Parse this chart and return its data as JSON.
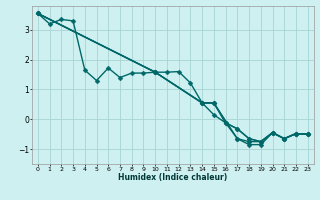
{
  "title": "",
  "xlabel": "Humidex (Indice chaleur)",
  "ylabel": "",
  "bg_color": "#cff0f0",
  "grid_color": "#a8d4d4",
  "line_color": "#006868",
  "xlim": [
    -0.5,
    23.5
  ],
  "ylim": [
    -1.5,
    3.8
  ],
  "yticks": [
    -1,
    0,
    1,
    2,
    3
  ],
  "xticks": [
    0,
    1,
    2,
    3,
    4,
    5,
    6,
    7,
    8,
    9,
    10,
    11,
    12,
    13,
    14,
    15,
    16,
    17,
    18,
    19,
    20,
    21,
    22,
    23
  ],
  "series": [
    {
      "x": [
        0,
        1,
        2,
        3,
        4,
        5,
        6,
        7,
        8,
        9,
        10,
        11,
        12,
        13,
        14,
        15,
        16,
        17,
        18,
        19,
        20,
        21,
        22,
        23
      ],
      "y": [
        3.55,
        3.2,
        3.35,
        3.3,
        1.65,
        1.3,
        1.72,
        1.4,
        1.55,
        1.55,
        1.58,
        1.58,
        1.6,
        1.22,
        0.55,
        0.55,
        -0.12,
        -0.32,
        -0.65,
        -0.75,
        -0.45,
        -0.65,
        -0.48,
        -0.5
      ],
      "marker": "D",
      "markersize": 2.5,
      "linewidth": 1.0
    },
    {
      "x": [
        0,
        10,
        14,
        15,
        16,
        17,
        18,
        19,
        20,
        21,
        22,
        23
      ],
      "y": [
        3.55,
        1.58,
        0.55,
        0.55,
        -0.12,
        -0.32,
        -0.65,
        -0.75,
        -0.45,
        -0.65,
        -0.48,
        -0.5
      ],
      "marker": "D",
      "markersize": 2.5,
      "linewidth": 1.0
    },
    {
      "x": [
        0,
        10,
        14,
        15,
        17,
        18,
        19,
        20,
        21,
        22,
        23
      ],
      "y": [
        3.55,
        1.58,
        0.55,
        0.55,
        -0.65,
        -0.75,
        -0.75,
        -0.45,
        -0.65,
        -0.48,
        -0.5
      ],
      "marker": "D",
      "markersize": 2.5,
      "linewidth": 1.0
    },
    {
      "x": [
        0,
        10,
        14,
        15,
        16,
        17,
        18,
        19,
        20,
        21,
        22,
        23
      ],
      "y": [
        3.55,
        1.58,
        0.55,
        0.15,
        -0.12,
        -0.65,
        -0.85,
        -0.85,
        -0.45,
        -0.65,
        -0.48,
        -0.5
      ],
      "marker": "D",
      "markersize": 2.5,
      "linewidth": 1.0
    }
  ]
}
